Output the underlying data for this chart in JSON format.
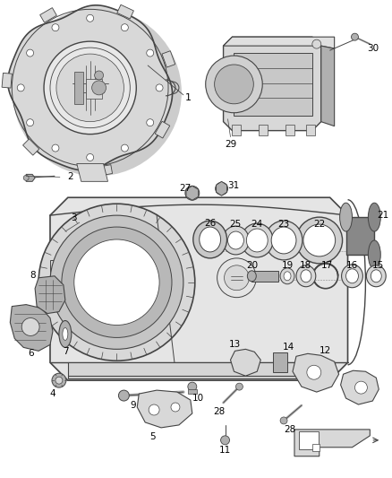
{
  "bg_color": "#ffffff",
  "fig_width": 4.38,
  "fig_height": 5.33,
  "dpi": 100,
  "line_color": "#444444",
  "text_color": "#000000",
  "font_size": 7.0,
  "gray_light": "#d8d8d8",
  "gray_mid": "#b0b0b0",
  "gray_dark": "#888888"
}
